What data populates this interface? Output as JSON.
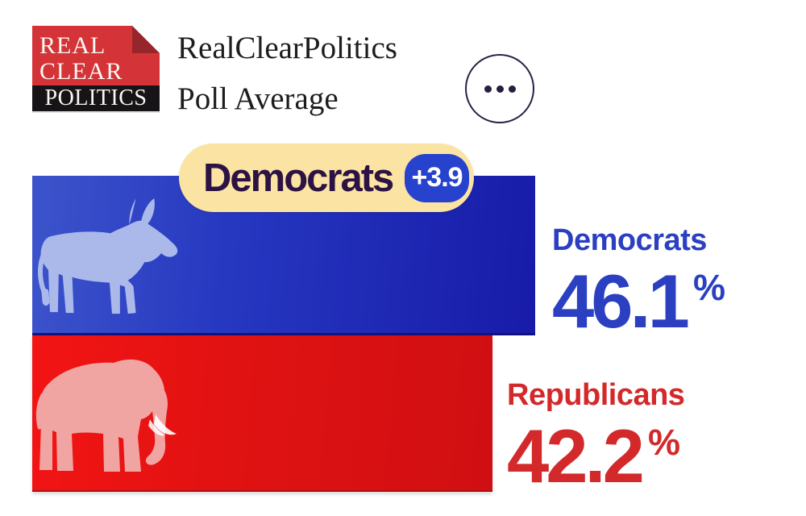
{
  "header": {
    "logo": {
      "line1": "REAL",
      "line2": "CLEAR",
      "line3": "POLITICS"
    },
    "title_line1": "RealClearPolitics",
    "title_line2": "Poll Average"
  },
  "badge": {
    "leader": "Democrats",
    "margin": "+3.9"
  },
  "results": [
    {
      "party": "Democrats",
      "value": "46.1",
      "unit": "%",
      "color": "#2b40c1"
    },
    {
      "party": "Republicans",
      "value": "42.2",
      "unit": "%",
      "color": "#d3292a"
    }
  ],
  "chart_data": {
    "type": "bar",
    "orientation": "horizontal",
    "title": "RealClearPolitics Poll Average",
    "categories": [
      "Democrats",
      "Republicans"
    ],
    "values": [
      46.1,
      42.2
    ],
    "unit": "%",
    "leader": "Democrats",
    "lead_margin": 3.9,
    "legend": false,
    "axes": false,
    "colors": {
      "democrats_bar": "#2133bf",
      "republicans_bar": "#e31313",
      "democrats_text": "#2b40c1",
      "republicans_text": "#d3292a",
      "badge_pill": "#fbe3a3",
      "badge_accent": "#2742cc",
      "badge_text": "#2d1343"
    }
  }
}
